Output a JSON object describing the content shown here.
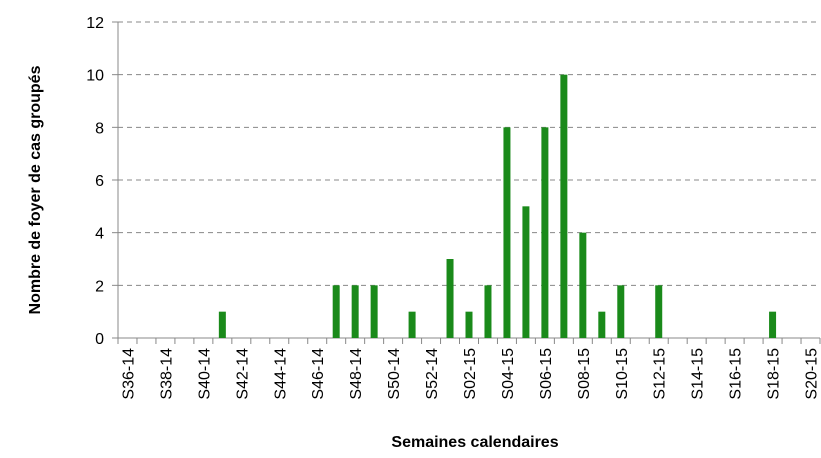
{
  "chart_data": {
    "type": "bar",
    "x_label": "Semaines calendaires",
    "y_label": "Nombre de foyer de cas  groupés",
    "categories": [
      "S36-14",
      null,
      "S38-14",
      null,
      "S40-14",
      null,
      "S42-14",
      null,
      "S44-14",
      null,
      "S46-14",
      null,
      "S48-14",
      null,
      "S50-14",
      null,
      "S52-14",
      null,
      "S02-15",
      null,
      "S04-15",
      null,
      "S06-15",
      null,
      "S08-15",
      null,
      "S10-15",
      null,
      "S12-15",
      null,
      "S14-15",
      null,
      "S16-15",
      null,
      "S18-15",
      null,
      "S20-15"
    ],
    "values": [
      0,
      0,
      0,
      0,
      0,
      1,
      0,
      0,
      0,
      0,
      0,
      2,
      2,
      2,
      0,
      1,
      0,
      3,
      1,
      2,
      8,
      5,
      8,
      10,
      4,
      1,
      2,
      0,
      2,
      0,
      0,
      0,
      0,
      0,
      1,
      0,
      0
    ],
    "color": "#1a8a1a",
    "ylim": [
      0,
      12
    ],
    "yticks": [
      0,
      2,
      4,
      6,
      8,
      10,
      12
    ],
    "grid": true
  }
}
